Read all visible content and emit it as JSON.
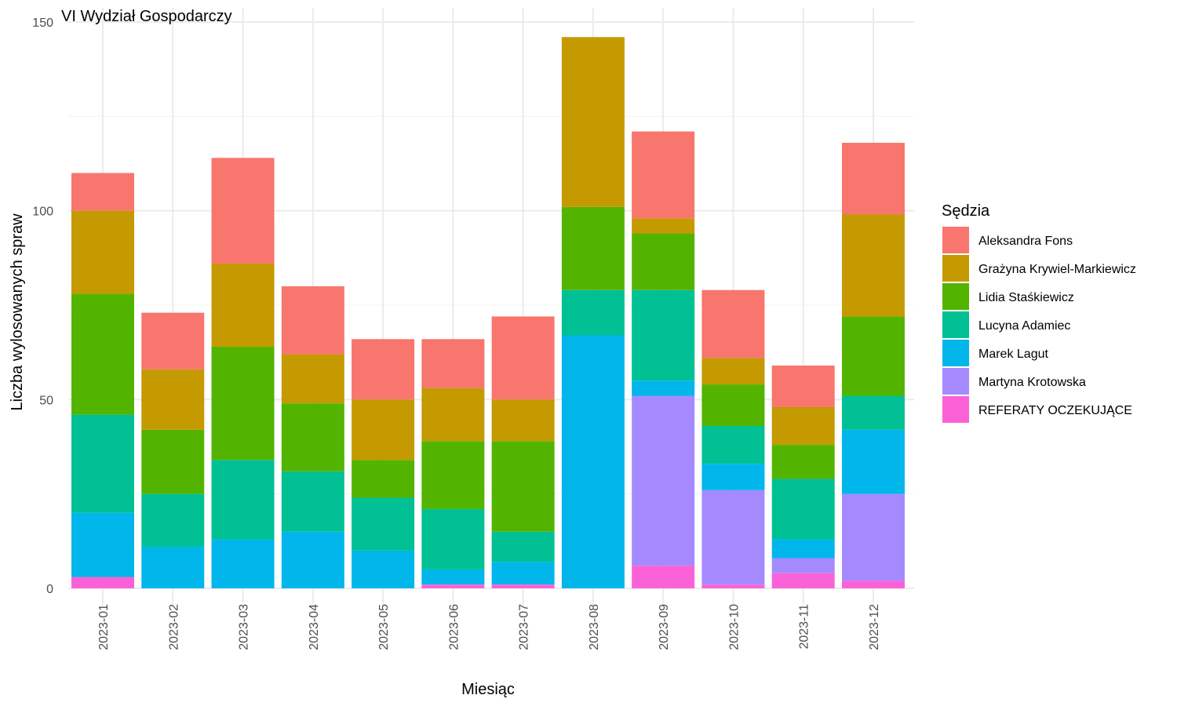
{
  "chart_data": {
    "type": "bar",
    "stacked": true,
    "title": "VI Wydział Gospodarczy",
    "xlabel": "Miesiąc",
    "ylabel": "Liczba wylosowanych spraw",
    "ylim": [
      0,
      150
    ],
    "yticks": [
      0,
      50,
      100,
      150
    ],
    "grid": true,
    "legend": {
      "title": "Sędzia",
      "position": "right"
    },
    "categories": [
      "2023-01",
      "2023-02",
      "2023-03",
      "2023-04",
      "2023-05",
      "2023-06",
      "2023-07",
      "2023-08",
      "2023-09",
      "2023-10",
      "2023-11",
      "2023-12"
    ],
    "series": [
      {
        "name": "Aleksandra Fons",
        "color": "#F8766D",
        "values": [
          10,
          15,
          28,
          18,
          16,
          13,
          22,
          0,
          23,
          18,
          11,
          19
        ]
      },
      {
        "name": "Grażyna Krywiel-Markiewicz",
        "color": "#C49A00",
        "values": [
          22,
          16,
          22,
          13,
          16,
          14,
          11,
          45,
          4,
          7,
          10,
          27
        ]
      },
      {
        "name": "Lidia Staśkiewicz",
        "color": "#53B400",
        "values": [
          32,
          17,
          30,
          18,
          10,
          18,
          24,
          22,
          15,
          11,
          9,
          21
        ]
      },
      {
        "name": "Lucyna Adamiec",
        "color": "#00C094",
        "values": [
          26,
          14,
          21,
          16,
          14,
          16,
          8,
          12,
          24,
          10,
          16,
          9
        ]
      },
      {
        "name": "Marek Lagut",
        "color": "#00B6EB",
        "values": [
          17,
          11,
          13,
          15,
          10,
          4,
          6,
          67,
          4,
          7,
          5,
          17
        ]
      },
      {
        "name": "Martyna Krotowska",
        "color": "#A58AFF",
        "values": [
          0,
          0,
          0,
          0,
          0,
          0,
          0,
          0,
          45,
          25,
          4,
          23
        ]
      },
      {
        "name": "REFERATY OCZEKUJĄCE",
        "color": "#FB61D7",
        "values": [
          3,
          0,
          0,
          0,
          0,
          1,
          1,
          0,
          6,
          1,
          4,
          2
        ]
      }
    ]
  }
}
